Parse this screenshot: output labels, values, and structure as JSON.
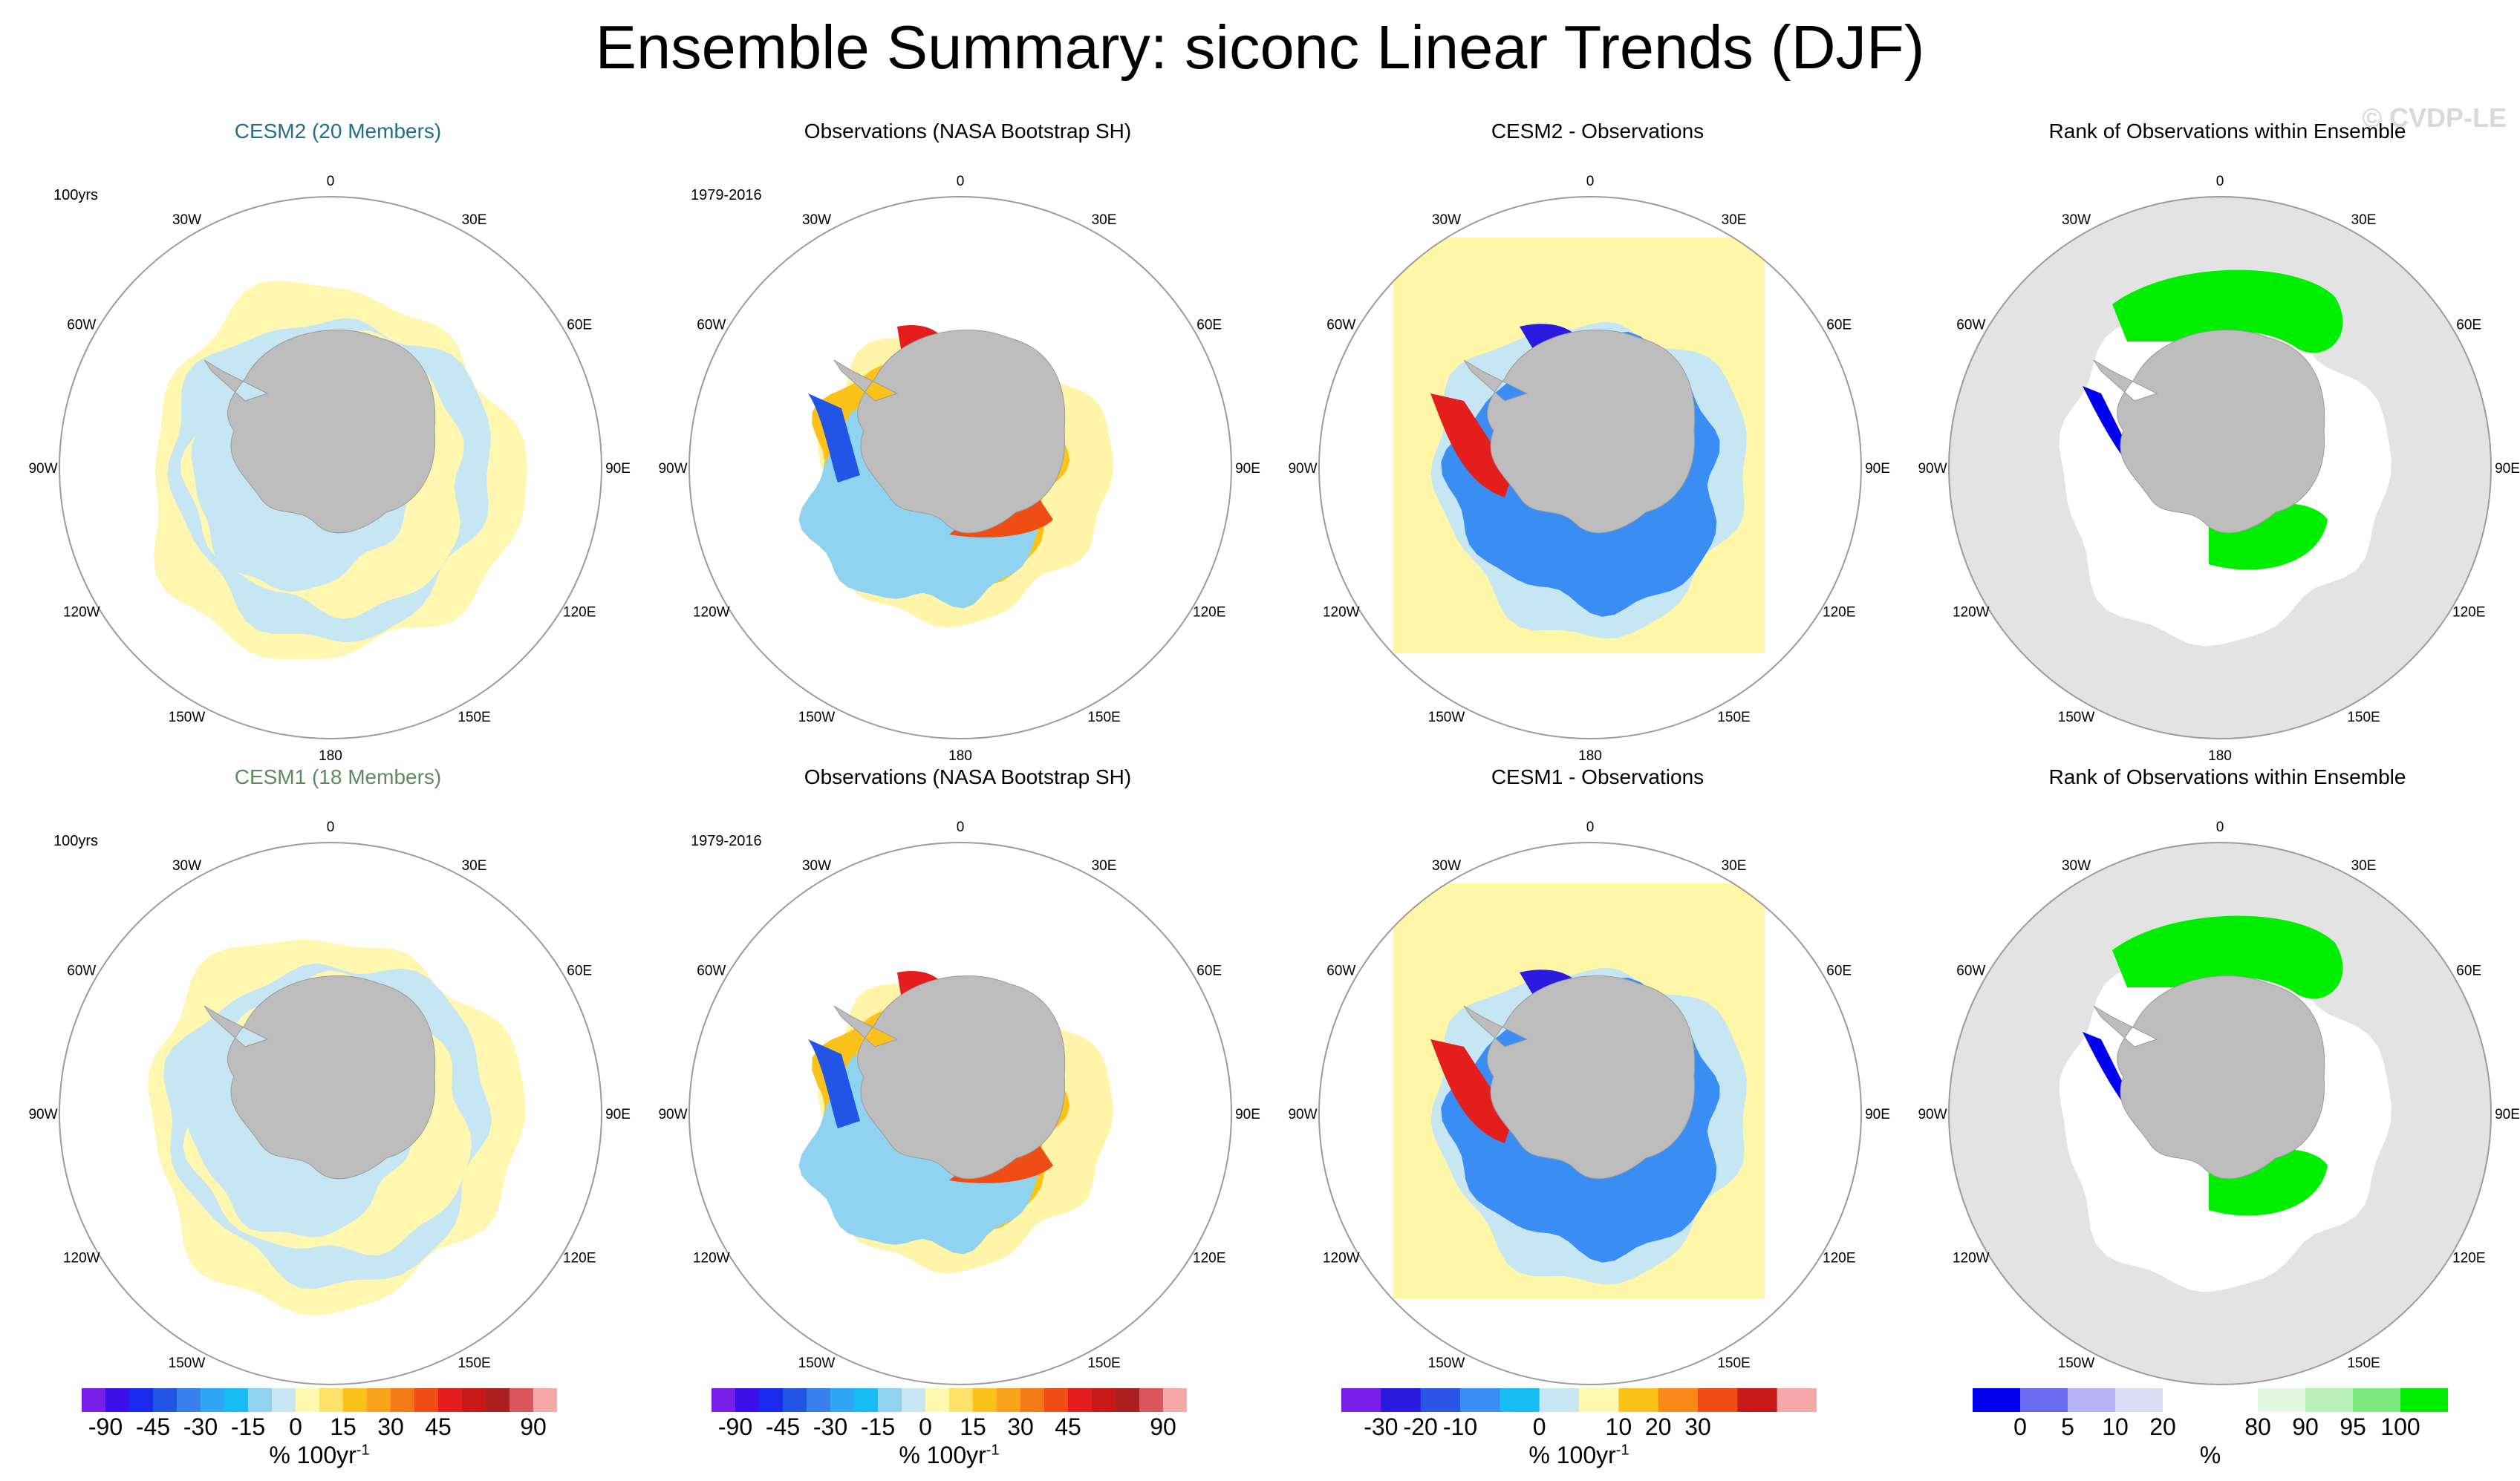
{
  "title": "Ensemble Summary: siconc Linear Trends (DJF)",
  "watermark": "© CVDP-LE",
  "longitude_labels": [
    "0",
    "30E",
    "60E",
    "90E",
    "120E",
    "150E",
    "180",
    "150W",
    "120W",
    "90W",
    "60W",
    "30W"
  ],
  "rows": [
    {
      "panels": [
        {
          "title": "CESM2 (20 Members)",
          "title_color": "#1f6e8c",
          "period": "100yrs",
          "kind": "model",
          "style": "model2"
        },
        {
          "title": "Observations (NASA Bootstrap SH)",
          "title_color": "#000000",
          "period": "1979-2016",
          "kind": "obs",
          "style": "obs"
        },
        {
          "title": "CESM2 - Observations",
          "title_color": "#000000",
          "period": "",
          "kind": "diff",
          "style": "diff"
        },
        {
          "title": "Rank of Observations within Ensemble",
          "title_color": "#000000",
          "period": "",
          "kind": "rank",
          "style": "rank"
        }
      ]
    },
    {
      "panels": [
        {
          "title": "CESM1 (18 Members)",
          "title_color": "#5f8a5f",
          "period": "100yrs",
          "kind": "model",
          "style": "model1"
        },
        {
          "title": "Observations (NASA Bootstrap SH)",
          "title_color": "#000000",
          "period": "1979-2016",
          "kind": "obs",
          "style": "obs"
        },
        {
          "title": "CESM1 - Observations",
          "title_color": "#000000",
          "period": "",
          "kind": "diff",
          "style": "diff"
        },
        {
          "title": "Rank of Observations within Ensemble",
          "title_color": "#000000",
          "period": "",
          "kind": "rank",
          "style": "rank"
        }
      ]
    }
  ],
  "colorbars": [
    {
      "colors": [
        "#7a1fe8",
        "#3d0fe8",
        "#1a2bf0",
        "#2255e6",
        "#3a7ff0",
        "#2ea5f5",
        "#18bdf5",
        "#8fd3f0",
        "#c6e6f3",
        "#fff9b0",
        "#fde26a",
        "#fbc219",
        "#f9a21a",
        "#f47a17",
        "#ef4d14",
        "#e31e1c",
        "#c91a1a",
        "#ad1f1f",
        "#d9575a",
        "#f5a8a8"
      ],
      "ticks": [
        "-90",
        "-45",
        "-30",
        "-15",
        "0",
        "15",
        "30",
        "45",
        "90"
      ],
      "tick_index": [
        1,
        3,
        5,
        7,
        9,
        11,
        13,
        15,
        19
      ],
      "unit": "% 100yr",
      "unit_sup": "-1"
    },
    {
      "colors": [
        "#7a1fe8",
        "#3d0fe8",
        "#1a2bf0",
        "#2255e6",
        "#3a7ff0",
        "#2ea5f5",
        "#18bdf5",
        "#8fd3f0",
        "#c6e6f3",
        "#fff9b0",
        "#fde26a",
        "#fbc219",
        "#f9a21a",
        "#f47a17",
        "#ef4d14",
        "#e31e1c",
        "#c91a1a",
        "#ad1f1f",
        "#d9575a",
        "#f5a8a8"
      ],
      "ticks": [
        "-90",
        "-45",
        "-30",
        "-15",
        "0",
        "15",
        "30",
        "45",
        "90"
      ],
      "tick_index": [
        1,
        3,
        5,
        7,
        9,
        11,
        13,
        15,
        19
      ],
      "unit": "% 100yr",
      "unit_sup": "-1"
    },
    {
      "colors": [
        "#7a1fe8",
        "#2a1ae0",
        "#2a55e6",
        "#3a8df2",
        "#18bdf5",
        "#c6e6f3",
        "#fff9b0",
        "#fbc219",
        "#f98a18",
        "#ef4d14",
        "#c91a1a",
        "#f5a8a8"
      ],
      "ticks": [
        "-30",
        "-20",
        "-10",
        "0",
        "10",
        "20",
        "30"
      ],
      "tick_index": [
        1,
        2,
        3,
        5,
        7,
        8,
        9
      ],
      "unit": "% 100yr",
      "unit_sup": "-1"
    },
    {
      "colors": [
        "#0000ee",
        "#6a6af0",
        "#b3b3f5",
        "#dcdcf7",
        "#ffffff",
        "#ffffff",
        "#e3f7e3",
        "#b8f0b8",
        "#7de87d",
        "#00ee00"
      ],
      "ticks": [
        "0",
        "5",
        "10",
        "20",
        "80",
        "90",
        "95",
        "100"
      ],
      "tick_index": [
        1,
        2,
        3,
        4,
        6,
        7,
        8,
        9
      ],
      "unit": "%",
      "unit_sup": ""
    }
  ]
}
